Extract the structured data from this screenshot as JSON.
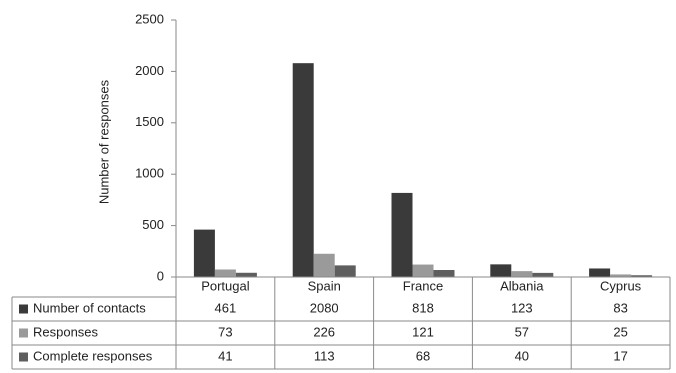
{
  "chart_data": {
    "type": "bar",
    "title": "",
    "xlabel": "",
    "ylabel": "Number of responses",
    "ylim": [
      0,
      2500
    ],
    "yticks": [
      0,
      500,
      1000,
      1500,
      2000,
      2500
    ],
    "categories": [
      "Portugal",
      "Spain",
      "France",
      "Albania",
      "Cyprus"
    ],
    "series": [
      {
        "name": "Number of contacts",
        "values": [
          461,
          2080,
          818,
          123,
          83
        ],
        "color": "#3a3a3a"
      },
      {
        "name": "Responses",
        "values": [
          73,
          226,
          121,
          57,
          25
        ],
        "color": "#9a9a9a"
      },
      {
        "name": "Complete responses",
        "values": [
          41,
          113,
          68,
          40,
          17
        ],
        "color": "#5e5e5e"
      }
    ],
    "grid": false,
    "legend": "data table below chart"
  }
}
